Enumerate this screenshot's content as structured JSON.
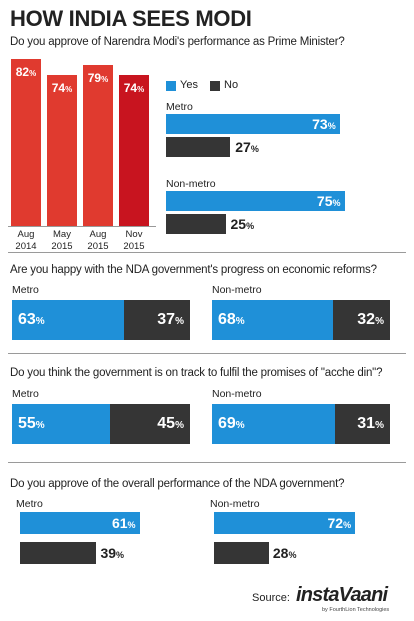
{
  "title": "HOW INDIA SEES MODI",
  "chart_data": [
    {
      "type": "bar",
      "title": "Do you approve of Narendra Modi's performance as Prime Minister?",
      "categories": [
        "Aug 2014",
        "May 2015",
        "Aug 2015",
        "Nov 2015"
      ],
      "category_lines": [
        [
          "Aug",
          "2014"
        ],
        [
          "May",
          "2015"
        ],
        [
          "Aug",
          "2015"
        ],
        [
          "Nov",
          "2015"
        ]
      ],
      "values": [
        82,
        74,
        79,
        74
      ],
      "value_labels": [
        "82",
        "74",
        "79",
        "74"
      ],
      "unit": "%",
      "ylim": [
        0,
        100
      ],
      "colors": [
        "#e03a2f",
        "#e03a2f",
        "#e03a2f",
        "#c8141f"
      ]
    },
    {
      "type": "bar",
      "orientation": "horizontal",
      "legend": [
        {
          "label": "Yes",
          "color": "#1f90d8"
        },
        {
          "label": "No",
          "color": "#353535"
        }
      ],
      "groups": [
        {
          "name": "Metro",
          "yes": 73,
          "no": 27,
          "yes_label": "73",
          "no_label": "27"
        },
        {
          "name": "Non-metro",
          "yes": 75,
          "no": 25,
          "yes_label": "75",
          "no_label": "25"
        }
      ],
      "unit": "%",
      "xlim": [
        0,
        100
      ]
    },
    {
      "type": "bar",
      "stacked": true,
      "title": "Are you happy with the NDA government's progress on economic reforms?",
      "groups": [
        {
          "name": "Metro",
          "yes": 63,
          "no": 37,
          "yes_label": "63",
          "no_label": "37"
        },
        {
          "name": "Non-metro",
          "yes": 68,
          "no": 32,
          "yes_label": "68",
          "no_label": "32"
        }
      ],
      "unit": "%"
    },
    {
      "type": "bar",
      "stacked": true,
      "title": "Do you think the government is on track to fulfil the promises of \"acche din\"?",
      "groups": [
        {
          "name": "Metro",
          "yes": 55,
          "no": 45,
          "yes_label": "55",
          "no_label": "45"
        },
        {
          "name": "Non-metro",
          "yes": 69,
          "no": 31,
          "yes_label": "69",
          "no_label": "31"
        }
      ],
      "unit": "%"
    },
    {
      "type": "bar",
      "orientation": "horizontal",
      "title": "Do you approve of the overall performance of the NDA government?",
      "groups": [
        {
          "name": "Metro",
          "yes": 61,
          "no": 39,
          "yes_label": "61",
          "no_label": "39"
        },
        {
          "name": "Non-metro",
          "yes": 72,
          "no": 28,
          "yes_label": "72",
          "no_label": "28"
        }
      ],
      "unit": "%",
      "xlim": [
        0,
        100
      ]
    }
  ],
  "footer": {
    "source_label": "Source:",
    "brand": "instaVaani",
    "brand_sub": "by FourthLion Technologies"
  },
  "colors": {
    "yes": "#1f90d8",
    "no": "#353535",
    "bar": "#e03a2f",
    "bar_latest": "#c8141f"
  }
}
